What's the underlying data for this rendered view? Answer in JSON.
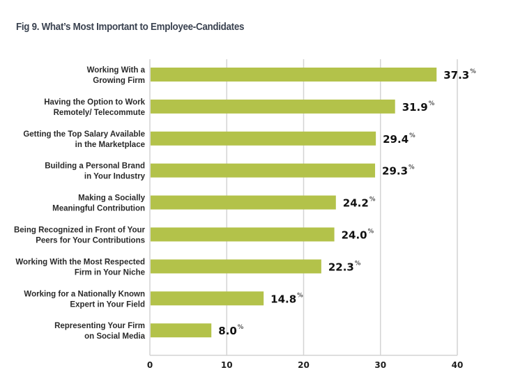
{
  "chart_data": {
    "type": "bar",
    "orientation": "horizontal",
    "title": "Fig 9. What’s Most Important to Employee-Candidates",
    "xlabel": "",
    "ylabel": "",
    "xlim": [
      0,
      40
    ],
    "xticks": [
      0,
      10,
      20,
      30,
      40
    ],
    "grid": true,
    "value_suffix": "%",
    "bar_color": "#b3c24a",
    "grid_color": "#d4d4d4",
    "categories": [
      [
        "Working With a",
        "Growing Firm"
      ],
      [
        "Having the Option to Work",
        "Remotely/ Telecommute"
      ],
      [
        "Getting the Top Salary Available",
        "in the Marketplace"
      ],
      [
        "Building a Personal Brand",
        "in Your Industry"
      ],
      [
        "Making a Socially",
        "Meaningful Contribution"
      ],
      [
        "Being Recognized in Front of Your",
        "Peers for Your Contributions"
      ],
      [
        "Working With the Most Respected",
        "Firm in Your Niche"
      ],
      [
        "Working for a Nationally Known",
        "Expert in Your Field"
      ],
      [
        "Representing Your Firm",
        "on Social Media"
      ]
    ],
    "values": [
      37.3,
      31.9,
      29.4,
      29.3,
      24.2,
      24.0,
      22.3,
      14.8,
      8.0
    ],
    "value_labels": [
      "37.3",
      "31.9",
      "29.4",
      "29.3",
      "24.2",
      "24.0",
      "22.3",
      "14.8",
      "8.0"
    ]
  }
}
